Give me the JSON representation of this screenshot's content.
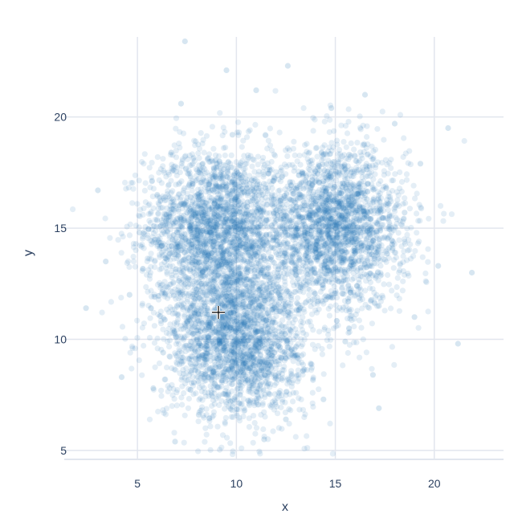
{
  "modebar": {
    "buttons": [
      {
        "name": "camera-icon",
        "active": false
      },
      {
        "name": "zoom-icon",
        "active": true
      },
      {
        "name": "pan-icon",
        "active": false
      },
      {
        "name": "box-select-icon",
        "active": false
      },
      {
        "name": "lasso-select-icon",
        "active": false
      },
      {
        "name": "zoom-in-icon",
        "active": false
      },
      {
        "name": "zoom-out-icon",
        "active": false
      },
      {
        "name": "autoscale-icon",
        "active": false
      },
      {
        "name": "reset-axes-icon",
        "active": false
      },
      {
        "name": "spike-lines-icon",
        "active": false
      },
      {
        "name": "hover-closest-icon",
        "active": false
      },
      {
        "name": "hover-compare-icon",
        "active": false
      },
      {
        "name": "edit-chart-icon",
        "active": false
      },
      {
        "name": "plotly-logo-icon",
        "active": false
      }
    ],
    "icon_color": "#a3b1c6",
    "active_color": "#5b6b80",
    "logo_color": "#3f75c5"
  },
  "chart_data": {
    "type": "scatter",
    "xlabel": "x",
    "ylabel": "y",
    "xlim": [
      1.3,
      23.5
    ],
    "ylim": [
      4.6,
      23.6
    ],
    "x_ticks": [
      5,
      10,
      15,
      20
    ],
    "y_ticks": [
      5,
      10,
      15,
      20
    ],
    "x_tick_labels": [
      "5",
      "10",
      "15",
      "20"
    ],
    "y_tick_labels": [
      "5",
      "10",
      "15",
      "20"
    ],
    "grid": true,
    "marker_color": "#1f77b4",
    "marker_opacity": 0.12,
    "series": [
      {
        "distribution": "gaussian",
        "center": [
          9,
          15
        ],
        "std": [
          1.8,
          1.8
        ]
      },
      {
        "distribution": "gaussian",
        "center": [
          15,
          15
        ],
        "std": [
          1.8,
          1.8
        ]
      },
      {
        "distribution": "gaussian",
        "center": [
          10,
          10
        ],
        "std": [
          1.8,
          1.8
        ]
      }
    ],
    "points": [
      [
        6.0,
        16.5
      ],
      [
        7.1,
        14.2
      ],
      [
        8.3,
        17.9
      ],
      [
        9.0,
        15.0
      ],
      [
        10.4,
        16.6
      ],
      [
        11.9,
        14.1
      ],
      [
        8.2,
        12.8
      ],
      [
        6.7,
        18.4
      ],
      [
        9.8,
        19.2
      ],
      [
        12.3,
        17.3
      ],
      [
        13.5,
        14.8
      ],
      [
        15.0,
        15.0
      ],
      [
        16.6,
        16.3
      ],
      [
        17.9,
        14.1
      ],
      [
        14.2,
        17.6
      ],
      [
        16.1,
        12.4
      ],
      [
        18.5,
        15.7
      ],
      [
        15.7,
        18.3
      ],
      [
        13.0,
        12.9
      ],
      [
        17.2,
        11.5
      ],
      [
        10.0,
        10.0
      ],
      [
        8.4,
        9.1
      ],
      [
        11.6,
        8.5
      ],
      [
        9.2,
        11.7
      ],
      [
        12.3,
        10.6
      ],
      [
        7.6,
        10.9
      ],
      [
        10.8,
        7.8
      ],
      [
        13.1,
        9.3
      ],
      [
        9.7,
        7.2
      ],
      [
        8.9,
        8.0
      ],
      [
        7.2,
        20.6
      ],
      [
        5.1,
        14.8
      ],
      [
        4.6,
        12.0
      ],
      [
        6.3,
        9.4
      ],
      [
        11.0,
        21.2
      ],
      [
        14.8,
        20.4
      ],
      [
        19.3,
        17.9
      ],
      [
        20.2,
        13.3
      ],
      [
        19.0,
        11.0
      ],
      [
        16.9,
        8.4
      ],
      [
        14.4,
        7.3
      ],
      [
        12.5,
        6.4
      ],
      [
        8.1,
        6.6
      ],
      [
        5.8,
        7.8
      ],
      [
        3.4,
        13.5
      ],
      [
        2.4,
        11.4
      ],
      [
        21.9,
        13.0
      ],
      [
        20.7,
        19.5
      ],
      [
        7.4,
        23.4
      ],
      [
        9.5,
        22.1
      ],
      [
        12.6,
        22.3
      ],
      [
        16.5,
        21.0
      ],
      [
        4.2,
        8.3
      ],
      [
        6.9,
        5.4
      ],
      [
        11.4,
        5.5
      ],
      [
        17.2,
        6.9
      ],
      [
        21.2,
        9.8
      ],
      [
        3.0,
        16.7
      ],
      [
        18.0,
        19.7
      ],
      [
        15.5,
        9.9
      ],
      [
        12.0,
        15.8
      ],
      [
        13.8,
        16.0
      ],
      [
        11.2,
        12.3
      ],
      [
        10.6,
        13.9
      ],
      [
        7.9,
        15.6
      ],
      [
        16.0,
        14.3
      ],
      [
        14.6,
        13.2
      ]
    ]
  }
}
